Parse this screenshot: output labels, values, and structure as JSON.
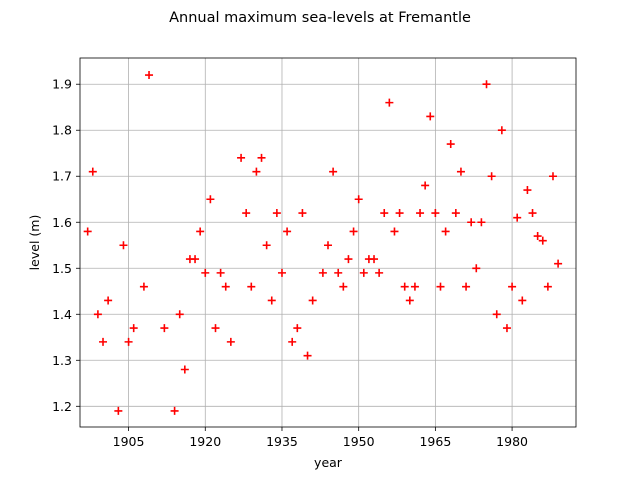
{
  "chart_data": {
    "type": "scatter",
    "title": "Annual maximum sea-levels at Fremantle",
    "xlabel": "year",
    "ylabel": "level (m)",
    "xlim": [
      1895.5,
      1992.5
    ],
    "ylim": [
      1.155,
      1.957
    ],
    "xticks": [
      1905,
      1920,
      1935,
      1950,
      1965,
      1980
    ],
    "yticks": [
      1.2,
      1.3,
      1.4,
      1.5,
      1.6,
      1.7,
      1.8,
      1.9
    ],
    "grid": true,
    "marker": "plus",
    "color": "#ff0000",
    "points": [
      {
        "x": 1897,
        "y": 1.58
      },
      {
        "x": 1898,
        "y": 1.71
      },
      {
        "x": 1899,
        "y": 1.4
      },
      {
        "x": 1900,
        "y": 1.34
      },
      {
        "x": 1901,
        "y": 1.43
      },
      {
        "x": 1903,
        "y": 1.19
      },
      {
        "x": 1904,
        "y": 1.55
      },
      {
        "x": 1905,
        "y": 1.34
      },
      {
        "x": 1906,
        "y": 1.37
      },
      {
        "x": 1908,
        "y": 1.46
      },
      {
        "x": 1909,
        "y": 1.92
      },
      {
        "x": 1912,
        "y": 1.37
      },
      {
        "x": 1914,
        "y": 1.19
      },
      {
        "x": 1915,
        "y": 1.4
      },
      {
        "x": 1916,
        "y": 1.28
      },
      {
        "x": 1917,
        "y": 1.52
      },
      {
        "x": 1918,
        "y": 1.52
      },
      {
        "x": 1919,
        "y": 1.58
      },
      {
        "x": 1920,
        "y": 1.49
      },
      {
        "x": 1921,
        "y": 1.65
      },
      {
        "x": 1922,
        "y": 1.37
      },
      {
        "x": 1923,
        "y": 1.49
      },
      {
        "x": 1924,
        "y": 1.46
      },
      {
        "x": 1925,
        "y": 1.34
      },
      {
        "x": 1927,
        "y": 1.74
      },
      {
        "x": 1928,
        "y": 1.62
      },
      {
        "x": 1929,
        "y": 1.46
      },
      {
        "x": 1930,
        "y": 1.71
      },
      {
        "x": 1931,
        "y": 1.74
      },
      {
        "x": 1932,
        "y": 1.55
      },
      {
        "x": 1933,
        "y": 1.43
      },
      {
        "x": 1934,
        "y": 1.62
      },
      {
        "x": 1935,
        "y": 1.49
      },
      {
        "x": 1936,
        "y": 1.58
      },
      {
        "x": 1937,
        "y": 1.34
      },
      {
        "x": 1938,
        "y": 1.37
      },
      {
        "x": 1939,
        "y": 1.62
      },
      {
        "x": 1940,
        "y": 1.31
      },
      {
        "x": 1941,
        "y": 1.43
      },
      {
        "x": 1943,
        "y": 1.49
      },
      {
        "x": 1944,
        "y": 1.55
      },
      {
        "x": 1945,
        "y": 1.71
      },
      {
        "x": 1946,
        "y": 1.49
      },
      {
        "x": 1947,
        "y": 1.46
      },
      {
        "x": 1948,
        "y": 1.52
      },
      {
        "x": 1949,
        "y": 1.58
      },
      {
        "x": 1950,
        "y": 1.65
      },
      {
        "x": 1951,
        "y": 1.49
      },
      {
        "x": 1952,
        "y": 1.52
      },
      {
        "x": 1953,
        "y": 1.52
      },
      {
        "x": 1954,
        "y": 1.49
      },
      {
        "x": 1955,
        "y": 1.62
      },
      {
        "x": 1956,
        "y": 1.86
      },
      {
        "x": 1957,
        "y": 1.58
      },
      {
        "x": 1958,
        "y": 1.62
      },
      {
        "x": 1959,
        "y": 1.46
      },
      {
        "x": 1960,
        "y": 1.43
      },
      {
        "x": 1961,
        "y": 1.46
      },
      {
        "x": 1962,
        "y": 1.62
      },
      {
        "x": 1963,
        "y": 1.68
      },
      {
        "x": 1964,
        "y": 1.83
      },
      {
        "x": 1965,
        "y": 1.62
      },
      {
        "x": 1966,
        "y": 1.46
      },
      {
        "x": 1967,
        "y": 1.58
      },
      {
        "x": 1968,
        "y": 1.77
      },
      {
        "x": 1969,
        "y": 1.62
      },
      {
        "x": 1970,
        "y": 1.71
      },
      {
        "x": 1971,
        "y": 1.46
      },
      {
        "x": 1972,
        "y": 1.6
      },
      {
        "x": 1973,
        "y": 1.5
      },
      {
        "x": 1974,
        "y": 1.6
      },
      {
        "x": 1975,
        "y": 1.9
      },
      {
        "x": 1976,
        "y": 1.7
      },
      {
        "x": 1977,
        "y": 1.4
      },
      {
        "x": 1978,
        "y": 1.8
      },
      {
        "x": 1979,
        "y": 1.37
      },
      {
        "x": 1980,
        "y": 1.46
      },
      {
        "x": 1981,
        "y": 1.61
      },
      {
        "x": 1982,
        "y": 1.43
      },
      {
        "x": 1983,
        "y": 1.67
      },
      {
        "x": 1984,
        "y": 1.62
      },
      {
        "x": 1985,
        "y": 1.57
      },
      {
        "x": 1986,
        "y": 1.56
      },
      {
        "x": 1987,
        "y": 1.46
      },
      {
        "x": 1988,
        "y": 1.7
      },
      {
        "x": 1989,
        "y": 1.51
      }
    ]
  }
}
